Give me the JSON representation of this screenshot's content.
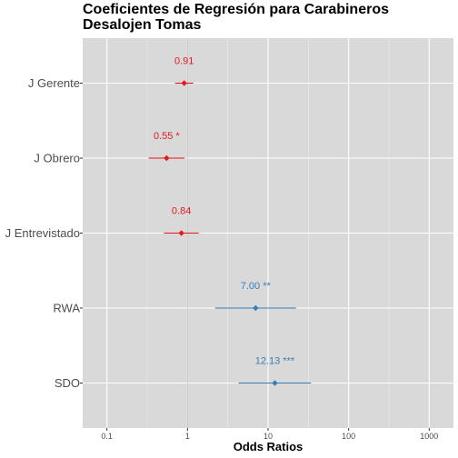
{
  "chart_data": {
    "type": "forest",
    "title": "Coeficientes de Regresión para Carabineros Desalojen Tomas",
    "xlabel": "Odds Ratios",
    "ylabel": "",
    "x_scale": "log10",
    "xlim": [
      0.05,
      2000
    ],
    "x_ticks": [
      0.1,
      1,
      10,
      100,
      1000
    ],
    "x_tick_labels": [
      "0.1",
      "1",
      "10",
      "100",
      "1000"
    ],
    "reference_line": 1,
    "grid": true,
    "legend": "none",
    "terms": [
      {
        "label": "J Gerente",
        "estimate": 0.91,
        "conf_low": 0.7,
        "conf_high": 1.18,
        "value_label": "0.91",
        "color": "#e41a1c"
      },
      {
        "label": "J Obrero",
        "estimate": 0.55,
        "conf_low": 0.33,
        "conf_high": 0.92,
        "value_label": "0.55 *",
        "color": "#e41a1c"
      },
      {
        "label": "J Entrevistado",
        "estimate": 0.84,
        "conf_low": 0.51,
        "conf_high": 1.38,
        "value_label": "0.84",
        "color": "#e41a1c"
      },
      {
        "label": "RWA",
        "estimate": 7.0,
        "conf_low": 2.2,
        "conf_high": 22.2,
        "value_label": "7.00 **",
        "color": "#377eb8"
      },
      {
        "label": "SDO",
        "estimate": 12.13,
        "conf_low": 4.3,
        "conf_high": 34.0,
        "value_label": "12.13 ***",
        "color": "#377eb8"
      }
    ]
  }
}
